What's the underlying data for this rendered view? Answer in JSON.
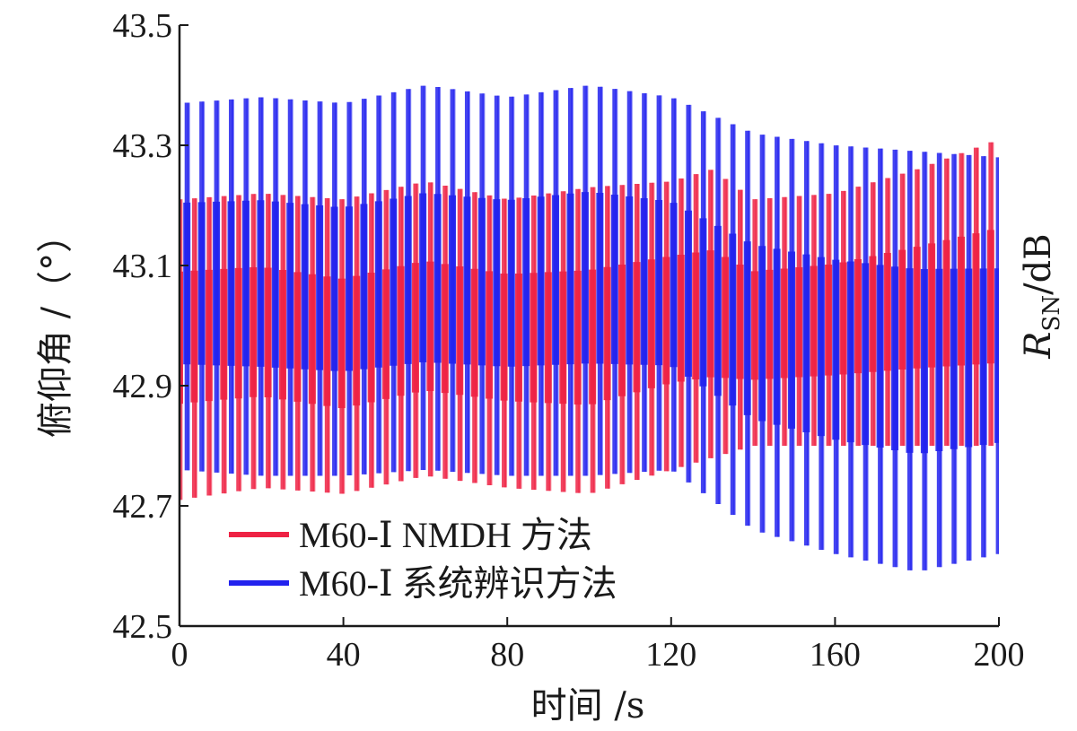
{
  "chart_data": {
    "type": "line",
    "xlabel": "时间 /s",
    "ylabel": "俯仰角 /（°）",
    "ylabel_right_main": "R",
    "ylabel_right_sub": "SN",
    "ylabel_right_unit": "/dB",
    "xlim": [
      0,
      200
    ],
    "ylim": [
      42.5,
      43.5
    ],
    "xticks": [
      0,
      40,
      80,
      120,
      160,
      200
    ],
    "xtick_labels": [
      "0",
      "40",
      "80",
      "120",
      "160",
      "200"
    ],
    "yticks": [
      42.5,
      42.7,
      42.9,
      43.1,
      43.3,
      43.5
    ],
    "ytick_labels": [
      "42.5",
      "42.7",
      "42.9",
      "43.1",
      "43.3",
      "43.5"
    ],
    "legend_position": "bottom-left",
    "grid": false,
    "oscillation_period_s": 3.6,
    "series": [
      {
        "name": "M60-Ⅰ NMDH 方法",
        "color": "#ee2244",
        "envelope_t": [
          0,
          20,
          40,
          60,
          80,
          100,
          120,
          130,
          140,
          160,
          180,
          200
        ],
        "upper": [
          43.21,
          43.22,
          43.21,
          43.24,
          43.21,
          43.23,
          43.24,
          43.26,
          43.21,
          43.22,
          43.26,
          43.31
        ],
        "lower": [
          42.71,
          42.73,
          42.72,
          42.75,
          42.73,
          42.72,
          42.76,
          42.78,
          42.8,
          42.8,
          42.8,
          42.8
        ],
        "center": [
          42.98,
          42.99,
          42.97,
          43.0,
          42.98,
          42.98,
          43.01,
          43.02,
          43.0,
          43.01,
          43.03,
          43.05
        ]
      },
      {
        "name": "M60-Ⅰ 系统辨识方法",
        "color": "#2222ee",
        "envelope_t": [
          0,
          20,
          40,
          60,
          80,
          100,
          120,
          130,
          140,
          160,
          180,
          200
        ],
        "upper": [
          43.37,
          43.38,
          43.37,
          43.4,
          43.38,
          43.4,
          43.38,
          43.35,
          43.32,
          43.3,
          43.29,
          43.28
        ],
        "lower": [
          42.76,
          42.75,
          42.75,
          42.76,
          42.75,
          42.75,
          42.76,
          42.71,
          42.66,
          42.62,
          42.59,
          42.62
        ],
        "center": [
          43.07,
          43.07,
          43.06,
          43.08,
          43.07,
          43.08,
          43.07,
          43.03,
          42.99,
          42.96,
          42.94,
          42.95
        ]
      }
    ]
  }
}
